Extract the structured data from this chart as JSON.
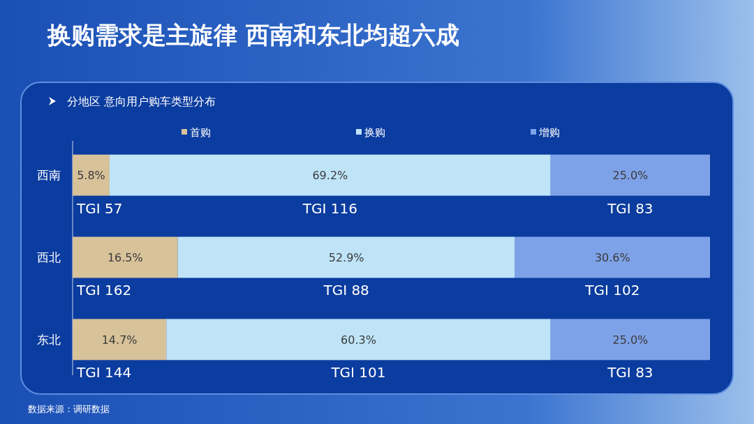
{
  "chart_data": {
    "type": "bar",
    "orientation": "horizontal",
    "stacked": true,
    "title": "换购需求是主旋律 西南和东北均超六成",
    "subtitle": "分地区 意向用户购车类型分布",
    "categories": [
      "西南",
      "西北",
      "东北"
    ],
    "series": [
      {
        "name": "首购",
        "color": "#d8c29a",
        "values": [
          5.8,
          16.5,
          14.7
        ],
        "value_labels": [
          "5.8%",
          "16.5%",
          "14.7%"
        ]
      },
      {
        "name": "换购",
        "color": "#bfe4f8",
        "values": [
          69.2,
          52.9,
          60.3
        ],
        "value_labels": [
          "69.2%",
          "52.9%",
          "60.3%"
        ]
      },
      {
        "name": "增购",
        "color": "#7ea2e8",
        "values": [
          25.0,
          30.6,
          25.0
        ],
        "value_labels": [
          "25.0%",
          "30.6%",
          "25.0%"
        ]
      }
    ],
    "legend": "top",
    "annotations": [
      "TGI 57",
      "TGI 116",
      "TGI 83",
      "TGI 162",
      "TGI 88",
      "TGI 102",
      "TGI 144",
      "TGI 101",
      "TGI 83",
      "数据来源：调研数据"
    ]
  }
}
